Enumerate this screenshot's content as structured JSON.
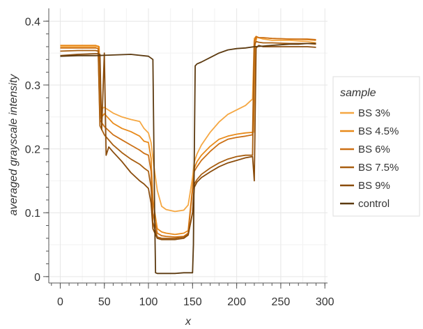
{
  "chart_data": {
    "type": "line",
    "title": "",
    "xlabel": "x",
    "ylabel": "averaged grayscale intensity",
    "xlim": [
      -13,
      303
    ],
    "ylim": [
      -0.01,
      0.42
    ],
    "xticks": [
      0,
      50,
      100,
      150,
      200,
      250,
      300
    ],
    "xtick_labels": [
      "0",
      "50",
      "100",
      "150",
      "200",
      "250",
      "300"
    ],
    "yticks": [
      0,
      0.1,
      0.2,
      0.3,
      0.4
    ],
    "ytick_labels": [
      "0",
      "0.1",
      "0.2",
      "0.3",
      "0.4"
    ],
    "grid": true,
    "legend": {
      "title": "sample",
      "position": "right"
    },
    "series": [
      {
        "name": "BS 3%",
        "color": "#F5A742",
        "x": [
          0,
          20,
          40,
          43,
          45,
          50,
          60,
          70,
          80,
          90,
          95,
          100,
          103,
          106,
          110,
          115,
          120,
          130,
          140,
          145,
          150,
          152,
          155,
          160,
          170,
          180,
          190,
          200,
          210,
          218,
          220,
          222,
          225,
          230,
          240,
          260,
          280,
          290
        ],
        "y": [
          0.36,
          0.36,
          0.36,
          0.361,
          0.262,
          0.265,
          0.256,
          0.25,
          0.246,
          0.243,
          0.232,
          0.225,
          0.21,
          0.175,
          0.135,
          0.11,
          0.105,
          0.102,
          0.104,
          0.112,
          0.155,
          0.18,
          0.192,
          0.206,
          0.226,
          0.242,
          0.254,
          0.261,
          0.268,
          0.278,
          0.373,
          0.376,
          0.374,
          0.372,
          0.37,
          0.37,
          0.368,
          0.366
        ]
      },
      {
        "name": "BS 4.5%",
        "color": "#E88A1A",
        "x": [
          0,
          20,
          40,
          44,
          46,
          50,
          60,
          70,
          80,
          90,
          95,
          100,
          103,
          105,
          110,
          115,
          120,
          130,
          140,
          145,
          150,
          152,
          155,
          160,
          170,
          180,
          190,
          200,
          210,
          219,
          221,
          223,
          225,
          230,
          240,
          260,
          280,
          290
        ],
        "y": [
          0.362,
          0.362,
          0.362,
          0.36,
          0.248,
          0.255,
          0.24,
          0.232,
          0.227,
          0.22,
          0.212,
          0.21,
          0.185,
          0.12,
          0.075,
          0.07,
          0.068,
          0.066,
          0.068,
          0.072,
          0.14,
          0.17,
          0.18,
          0.19,
          0.204,
          0.215,
          0.22,
          0.223,
          0.225,
          0.226,
          0.365,
          0.375,
          0.374,
          0.374,
          0.373,
          0.372,
          0.371,
          0.37
        ]
      },
      {
        "name": "BS 6%",
        "color": "#CC7015",
        "x": [
          0,
          20,
          40,
          43,
          45,
          50,
          60,
          70,
          80,
          90,
          95,
          100,
          103,
          105,
          110,
          115,
          120,
          130,
          140,
          145,
          150,
          152,
          155,
          160,
          170,
          180,
          190,
          200,
          210,
          218,
          220,
          222,
          225,
          230,
          240,
          260,
          280,
          290
        ],
        "y": [
          0.358,
          0.358,
          0.358,
          0.357,
          0.245,
          0.235,
          0.222,
          0.214,
          0.206,
          0.198,
          0.193,
          0.19,
          0.165,
          0.1,
          0.068,
          0.064,
          0.063,
          0.062,
          0.063,
          0.068,
          0.135,
          0.165,
          0.172,
          0.182,
          0.196,
          0.208,
          0.215,
          0.218,
          0.22,
          0.222,
          0.368,
          0.376,
          0.374,
          0.374,
          0.373,
          0.372,
          0.372,
          0.371
        ]
      },
      {
        "name": "BS 7.5%",
        "color": "#A85E10",
        "x": [
          0,
          20,
          40,
          43,
          45,
          50,
          60,
          70,
          80,
          90,
          95,
          100,
          103,
          105,
          110,
          115,
          120,
          130,
          140,
          145,
          150,
          152,
          155,
          160,
          170,
          180,
          190,
          200,
          210,
          218,
          220,
          222,
          225,
          230,
          240,
          260,
          280,
          290
        ],
        "y": [
          0.353,
          0.354,
          0.354,
          0.353,
          0.236,
          0.222,
          0.206,
          0.194,
          0.184,
          0.176,
          0.17,
          0.165,
          0.14,
          0.085,
          0.062,
          0.06,
          0.06,
          0.06,
          0.062,
          0.066,
          0.1,
          0.145,
          0.152,
          0.16,
          0.17,
          0.178,
          0.184,
          0.188,
          0.19,
          0.19,
          0.362,
          0.368,
          0.367,
          0.366,
          0.366,
          0.365,
          0.365,
          0.364
        ]
      },
      {
        "name": "BS 9%",
        "color": "#8A4C0C",
        "x": [
          0,
          20,
          40,
          43,
          45,
          47,
          50,
          52,
          55,
          60,
          70,
          80,
          90,
          95,
          100,
          103,
          105,
          110,
          115,
          120,
          130,
          140,
          145,
          150,
          152,
          155,
          160,
          170,
          180,
          190,
          200,
          210,
          218,
          220,
          222,
          225,
          230,
          240,
          260,
          280,
          290
        ],
        "y": [
          0.346,
          0.348,
          0.349,
          0.349,
          0.348,
          0.23,
          0.35,
          0.19,
          0.203,
          0.195,
          0.18,
          0.163,
          0.15,
          0.145,
          0.138,
          0.115,
          0.075,
          0.06,
          0.058,
          0.058,
          0.058,
          0.06,
          0.065,
          0.1,
          0.14,
          0.148,
          0.155,
          0.164,
          0.172,
          0.178,
          0.182,
          0.186,
          0.188,
          0.15,
          0.358,
          0.362,
          0.36,
          0.36,
          0.36,
          0.36,
          0.359
        ]
      },
      {
        "name": "control",
        "color": "#5C3A10",
        "x": [
          0,
          20,
          40,
          60,
          80,
          100,
          105,
          107,
          108,
          110,
          120,
          130,
          140,
          150,
          151,
          152,
          153,
          155,
          160,
          170,
          180,
          190,
          200,
          210,
          220,
          230,
          240,
          250,
          260,
          270,
          280,
          290
        ],
        "y": [
          0.345,
          0.346,
          0.346,
          0.347,
          0.348,
          0.345,
          0.34,
          0.1,
          0.006,
          0.005,
          0.005,
          0.005,
          0.006,
          0.006,
          0.05,
          0.2,
          0.33,
          0.333,
          0.336,
          0.343,
          0.35,
          0.355,
          0.357,
          0.358,
          0.36,
          0.361,
          0.362,
          0.363,
          0.364,
          0.364,
          0.365,
          0.365
        ]
      }
    ]
  }
}
